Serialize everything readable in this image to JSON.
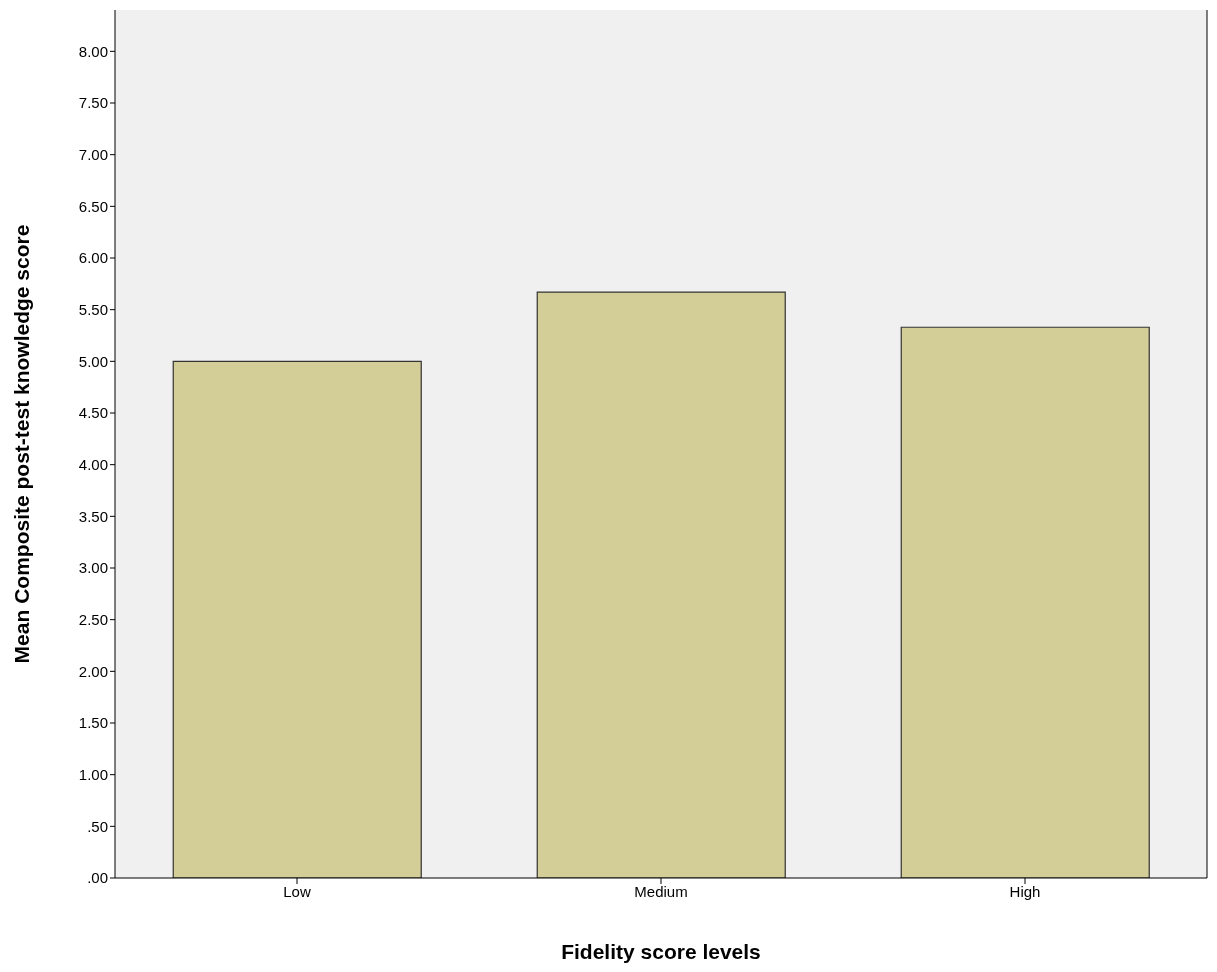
{
  "chart_data": {
    "type": "bar",
    "xlabel": "Fidelity score levels",
    "ylabel": "Mean Composite post-test knowledge score",
    "categories": [
      "Low",
      "Medium",
      "High"
    ],
    "values": [
      5.0,
      5.67,
      5.33
    ],
    "color": "#d3ce98",
    "ylim": [
      0,
      8.4
    ],
    "yticks": [
      {
        "value": 0,
        "label": ".00"
      },
      {
        "value": 0.5,
        "label": ".50"
      },
      {
        "value": 1,
        "label": "1.00"
      },
      {
        "value": 1.5,
        "label": "1.50"
      },
      {
        "value": 2,
        "label": "2.00"
      },
      {
        "value": 2.5,
        "label": "2.50"
      },
      {
        "value": 3,
        "label": "3.00"
      },
      {
        "value": 3.5,
        "label": "3.50"
      },
      {
        "value": 4,
        "label": "4.00"
      },
      {
        "value": 4.5,
        "label": "4.50"
      },
      {
        "value": 5,
        "label": "5.00"
      },
      {
        "value": 5.5,
        "label": "5.50"
      },
      {
        "value": 6,
        "label": "6.00"
      },
      {
        "value": 6.5,
        "label": "6.50"
      },
      {
        "value": 7,
        "label": "7.00"
      },
      {
        "value": 7.5,
        "label": "7.50"
      },
      {
        "value": 8,
        "label": "8.00"
      }
    ],
    "grid": false
  }
}
